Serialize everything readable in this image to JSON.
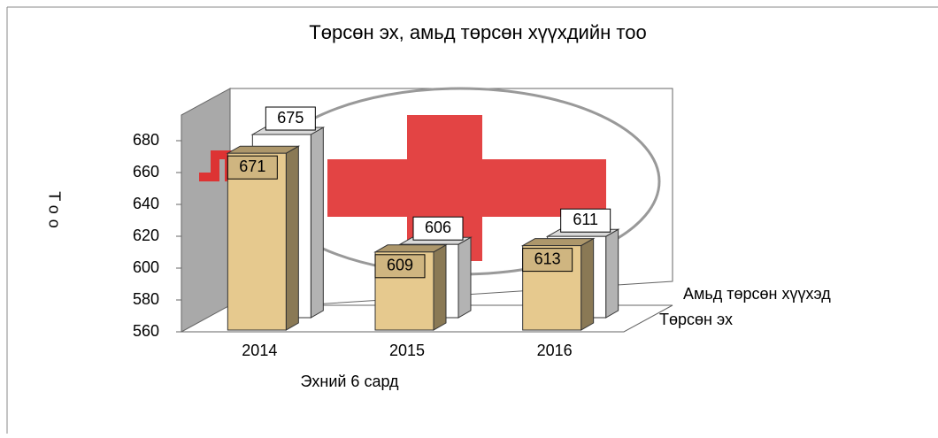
{
  "chart_data": {
    "type": "bar3d",
    "title": "Төрсөн эх, амьд төрсөн хүүхдийн тоо",
    "x_label": "Эхний 6 сард",
    "y_label": "Тоо",
    "categories": [
      "2014",
      "2015",
      "2016"
    ],
    "series": [
      {
        "name": "Амьд төрсөн хүүхэд",
        "color": "#ffffff",
        "values": [
          675,
          606,
          611
        ]
      },
      {
        "name": "Төрсөн эх",
        "color": "#e6c98e",
        "values": [
          671,
          609,
          613
        ]
      }
    ],
    "ylim": [
      560,
      700
    ],
    "yticks": [
      560,
      580,
      600,
      620,
      640,
      660,
      680
    ]
  }
}
